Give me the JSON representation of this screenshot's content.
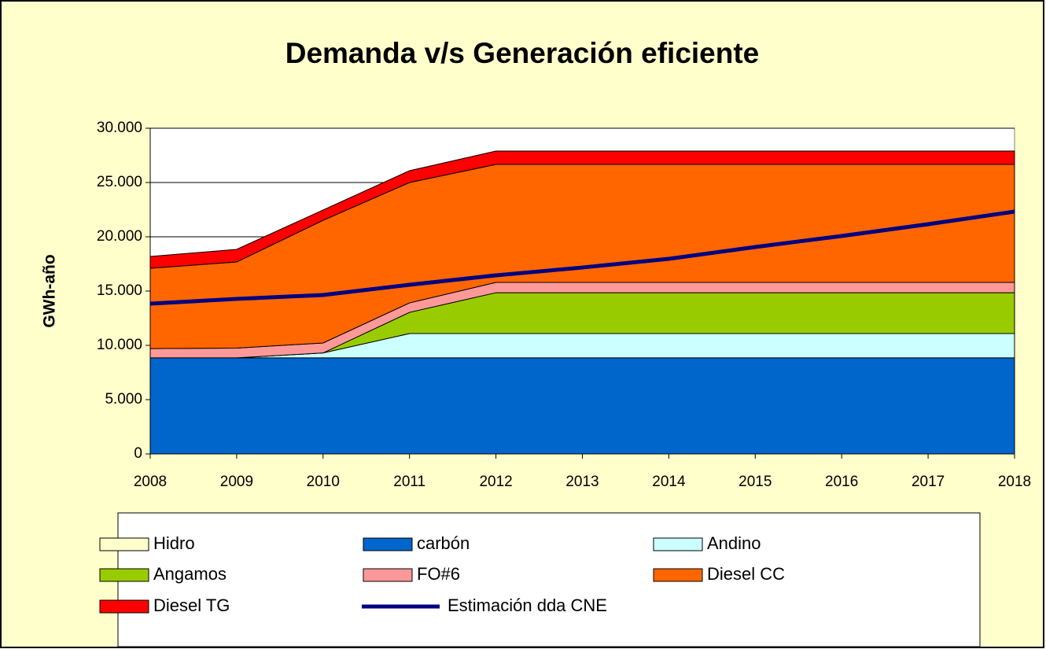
{
  "chart_data": {
    "type": "area",
    "stacked": true,
    "title": "Demanda v/s Generación eficiente",
    "y_label": "GWh-año",
    "categories": [
      "2008",
      "2009",
      "2010",
      "2011",
      "2012",
      "2013",
      "2014",
      "2015",
      "2016",
      "2017",
      "2018"
    ],
    "series": [
      {
        "name": "Hidro",
        "kind": "area",
        "color": "#ffffcc",
        "values": [
          0,
          0,
          0,
          0,
          0,
          0,
          0,
          0,
          0,
          0,
          0
        ]
      },
      {
        "name": "carbón",
        "kind": "area",
        "color": "#0066cc",
        "values": [
          8850,
          8850,
          8850,
          8850,
          8850,
          8850,
          8850,
          8850,
          8850,
          8850,
          8850
        ]
      },
      {
        "name": "Andino",
        "kind": "area",
        "color": "#ccffff",
        "values": [
          0,
          0,
          450,
          2240,
          2240,
          2240,
          2240,
          2240,
          2240,
          2240,
          2240
        ]
      },
      {
        "name": "Angamos",
        "kind": "area",
        "color": "#99cc00",
        "values": [
          0,
          0,
          0,
          1950,
          3760,
          3760,
          3760,
          3760,
          3760,
          3760,
          3760
        ]
      },
      {
        "name": "FO#6",
        "kind": "area",
        "color": "#ff9999",
        "values": [
          850,
          900,
          920,
          870,
          950,
          950,
          950,
          950,
          950,
          950,
          950
        ]
      },
      {
        "name": "Diesel CC",
        "kind": "area",
        "color": "#ff6600",
        "values": [
          7400,
          7930,
          11300,
          11090,
          10870,
          10870,
          10870,
          10870,
          10870,
          10870,
          10870
        ]
      },
      {
        "name": "Diesel TG",
        "kind": "area",
        "color": "#ff0000",
        "values": [
          1090,
          1160,
          950,
          1090,
          1230,
          1230,
          1230,
          1230,
          1230,
          1230,
          1230
        ]
      },
      {
        "name": "Estimación dda CNE",
        "kind": "line",
        "color": "#000080",
        "values": [
          13840,
          14280,
          14640,
          15580,
          16450,
          17170,
          17970,
          19060,
          20070,
          21160,
          22320
        ]
      }
    ],
    "ylim": [
      0,
      30000
    ],
    "yticks": [
      0,
      {
        "value": 5000,
        "label": "5.000"
      },
      {
        "value": 10000,
        "label": "10.000"
      },
      {
        "value": 15000,
        "label": "15.000"
      },
      {
        "value": 20000,
        "label": "20.000"
      },
      {
        "value": 25000,
        "label": "25.000"
      },
      {
        "value": 30000,
        "label": "30.000"
      }
    ],
    "grid": true,
    "legend": "bottom"
  }
}
